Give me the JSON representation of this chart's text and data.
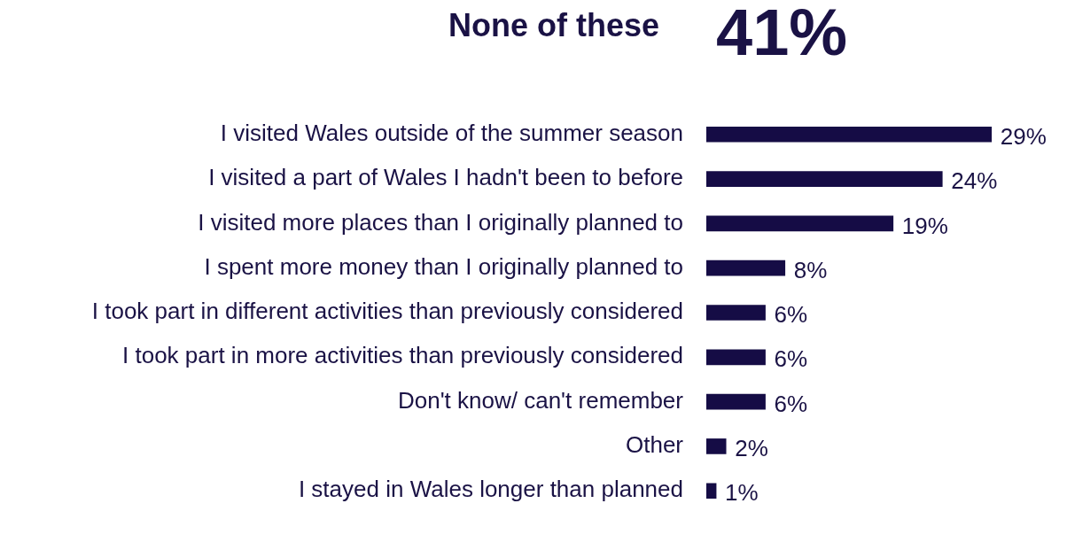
{
  "chart_data": {
    "type": "bar",
    "orientation": "horizontal",
    "title": "None of these",
    "annotations": [
      "41%"
    ],
    "categories": [
      "I visited Wales outside of the summer season",
      "I visited a part of Wales I hadn't been to before",
      "I visited more places than I originally planned to",
      "I spent more money than I originally planned to",
      "I took part in different activities than previously considered",
      "I took part in more activities than previously considered",
      "Don't know/ can't remember",
      "Other",
      "I stayed in Wales longer than planned"
    ],
    "values": [
      29,
      24,
      19,
      8,
      6,
      6,
      6,
      2,
      1
    ],
    "value_labels": [
      "29%",
      "24%",
      "19%",
      "8%",
      "6%",
      "6%",
      "6%",
      "2%",
      "1%"
    ],
    "color": "#150c45",
    "legend": false
  }
}
